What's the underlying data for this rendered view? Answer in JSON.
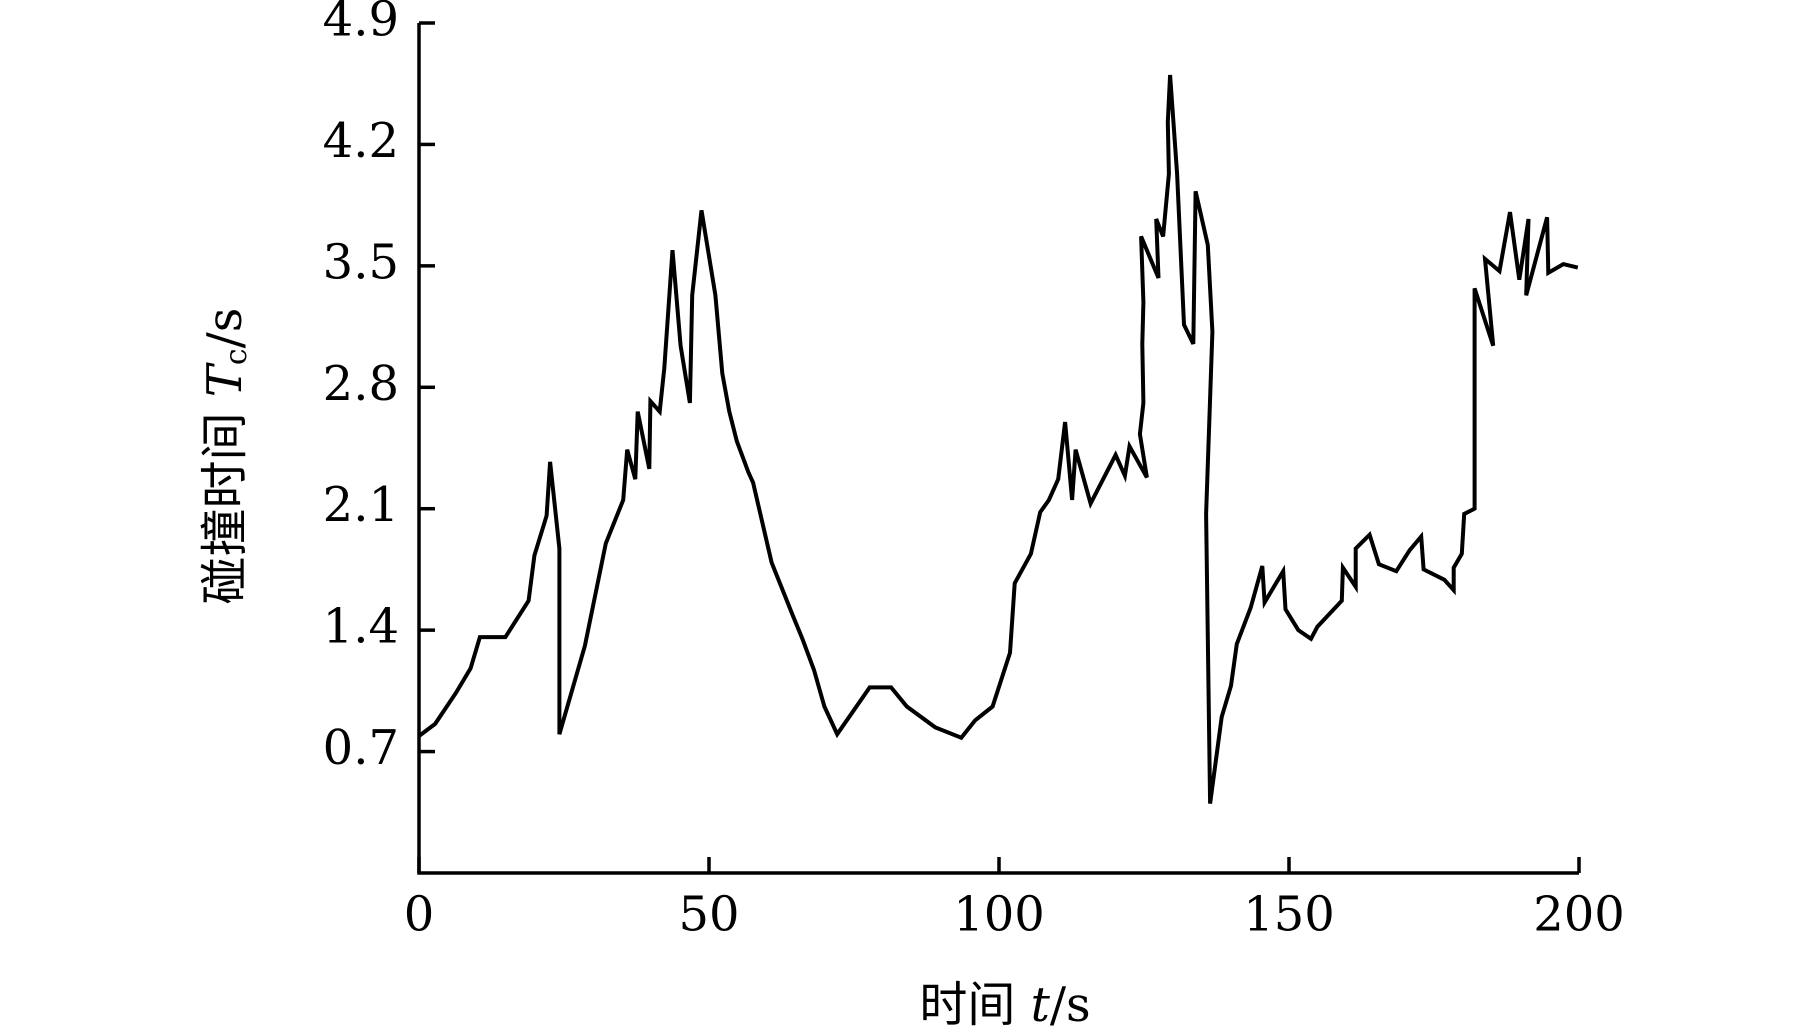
{
  "chart_data": {
    "type": "line",
    "xlabel": [
      "时间 ",
      "t",
      "/s"
    ],
    "ylabel": [
      "碰撞时间 ",
      "T",
      "c",
      "/s"
    ],
    "color": "#000000",
    "x": [
      0,
      2.8,
      6.4,
      8.9,
      10.5,
      14.9,
      18.9,
      19.9,
      22.0,
      22.6,
      24.2,
      24.2,
      28.6,
      32.2,
      35.2,
      35.9,
      37.3,
      37.7,
      39.7,
      39.9,
      41.5,
      42.3,
      43.7,
      45.1,
      46.7,
      47.1,
      48.7,
      51.1,
      52.3,
      53.5,
      54.8,
      56.8,
      57.6,
      60.8,
      64.5,
      66.1,
      68.1,
      69.9,
      72.1,
      77.7,
      81.4,
      84.1,
      89.0,
      93.5,
      95.9,
      98.9,
      101.9,
      102.7,
      105.5,
      107.1,
      108.6,
      110.2,
      111.4,
      112.6,
      113.2,
      115.8,
      120.1,
      121.7,
      122.5,
      125.5,
      124.3,
      124.9,
      124.7,
      124.9,
      124.5,
      127.5,
      127.1,
      128.3,
      129.3,
      129.1,
      129.5,
      130.7,
      131.9,
      133.5,
      133.9,
      136.0,
      136.8,
      135.7,
      136.4,
      138.4,
      140.0,
      141.0,
      143.4,
      145.4,
      145.8,
      149.0,
      149.4,
      151.6,
      153.8,
      154.9,
      159.1,
      159.3,
      161.5,
      161.5,
      163.9,
      165.5,
      168.5,
      170.8,
      172.8,
      173.2,
      176.8,
      178.4,
      178.4,
      179.8,
      180.2,
      182.0,
      182.0,
      185.2,
      183.8,
      186.3,
      188.1,
      189.7,
      191.3,
      190.9,
      194.5,
      194.7,
      197.3,
      199.8
    ],
    "values": [
      0.79,
      0.86,
      1.04,
      1.18,
      1.36,
      1.36,
      1.57,
      1.83,
      2.06,
      2.37,
      1.87,
      0.8,
      1.31,
      1.9,
      2.15,
      2.44,
      2.27,
      2.66,
      2.33,
      2.72,
      2.66,
      2.91,
      3.59,
      3.04,
      2.71,
      3.33,
      3.82,
      3.33,
      2.88,
      2.66,
      2.49,
      2.31,
      2.25,
      1.79,
      1.48,
      1.35,
      1.17,
      0.96,
      0.8,
      1.07,
      1.07,
      0.96,
      0.84,
      0.78,
      0.88,
      0.96,
      1.27,
      1.67,
      1.84,
      2.08,
      2.15,
      2.27,
      2.6,
      2.15,
      2.44,
      2.13,
      2.41,
      2.29,
      2.46,
      2.28,
      2.53,
      2.71,
      3.05,
      3.29,
      3.67,
      3.43,
      3.77,
      3.67,
      4.03,
      4.33,
      4.6,
      4.03,
      3.16,
      3.05,
      3.93,
      3.62,
      3.12,
      2.07,
      0.4,
      0.9,
      1.08,
      1.32,
      1.53,
      1.77,
      1.56,
      1.74,
      1.52,
      1.4,
      1.35,
      1.42,
      1.57,
      1.76,
      1.65,
      1.87,
      1.95,
      1.78,
      1.74,
      1.86,
      1.94,
      1.75,
      1.69,
      1.63,
      1.76,
      1.84,
      2.07,
      2.1,
      3.37,
      3.04,
      3.54,
      3.47,
      3.81,
      3.42,
      3.77,
      3.33,
      3.78,
      3.46,
      3.51,
      3.49
    ],
    "xlim": [
      0,
      200
    ],
    "xticks": [
      0,
      50,
      100,
      150,
      200
    ],
    "ylim": [
      0,
      4.9
    ],
    "yticks": [
      0.7,
      1.4,
      2.1,
      2.8,
      3.5,
      4.2,
      4.9
    ]
  }
}
